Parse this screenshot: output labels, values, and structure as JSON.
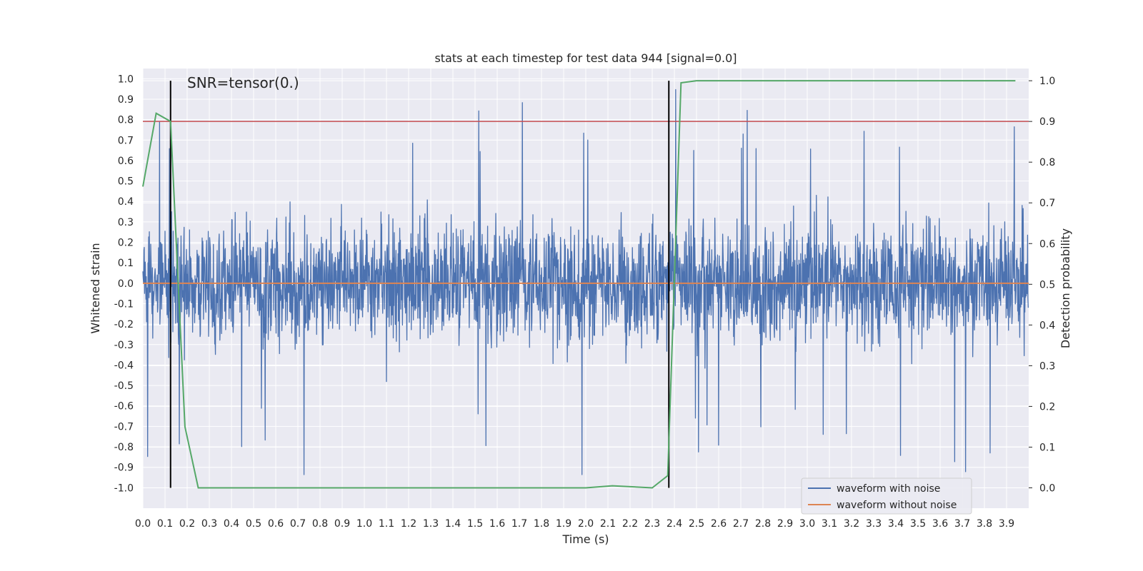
{
  "chart_data": {
    "type": "line",
    "title": "stats at each timestep for test data 944 [signal=0.0]",
    "xlabel": "Time (s)",
    "ylabel": "Whitened strain",
    "y2label": "Detection probability",
    "annotation": "SNR=tensor(0.)",
    "xlim": [
      0.0,
      4.0
    ],
    "ylim": [
      -1.1,
      1.05
    ],
    "y2lim": [
      -0.05,
      1.03
    ],
    "xticks": [
      "0.0",
      "0.1",
      "0.2",
      "0.3",
      "0.4",
      "0.5",
      "0.6",
      "0.7",
      "0.8",
      "0.9",
      "1.0",
      "1.1",
      "1.2",
      "1.3",
      "1.4",
      "1.5",
      "1.6",
      "1.7",
      "1.8",
      "1.9",
      "2.0",
      "2.1",
      "2.2",
      "2.3",
      "2.4",
      "2.5",
      "2.6",
      "2.7",
      "2.8",
      "2.9",
      "3.0",
      "3.1",
      "3.2",
      "3.3",
      "3.4",
      "3.5",
      "3.6",
      "3.7",
      "3.8",
      "3.9"
    ],
    "yticks": [
      "1.0",
      "0.9",
      "0.8",
      "0.7",
      "0.6",
      "0.5",
      "0.4",
      "0.3",
      "0.2",
      "0.1",
      "0.0",
      "-0.1",
      "-0.2",
      "-0.3",
      "-0.4",
      "-0.5",
      "-0.6",
      "-0.7",
      "-0.8",
      "-0.9",
      "-1.0"
    ],
    "y2ticks": [
      "1.0",
      "0.9",
      "0.8",
      "0.7",
      "0.6",
      "0.5",
      "0.4",
      "0.3",
      "0.2",
      "0.1",
      "0.0"
    ],
    "grid": true,
    "legend_position": "bottom-right",
    "series": [
      {
        "name": "waveform with noise",
        "color": "#4c72b0",
        "description": "dense noisy strain oscillating roughly between -0.95 and 0.95"
      },
      {
        "name": "waveform without noise",
        "color": "#dd8452",
        "y": 0.0
      },
      {
        "color": "#55a868",
        "axis": "right",
        "x": [
          0.0,
          0.06,
          0.125,
          0.19,
          0.25,
          2.0,
          2.12,
          2.3,
          2.37,
          2.43,
          2.5,
          3.94
        ],
        "y": [
          0.74,
          0.92,
          0.9,
          0.15,
          0.0,
          0.0,
          0.005,
          0.0,
          0.03,
          0.995,
          1.0,
          1.0
        ]
      }
    ],
    "threshold": {
      "value": 0.9,
      "axis": "right",
      "color": "#c44e52"
    },
    "vlines": [
      {
        "x": 0.125,
        "color": "#000000"
      },
      {
        "x": 2.375,
        "color": "#000000"
      }
    ]
  }
}
